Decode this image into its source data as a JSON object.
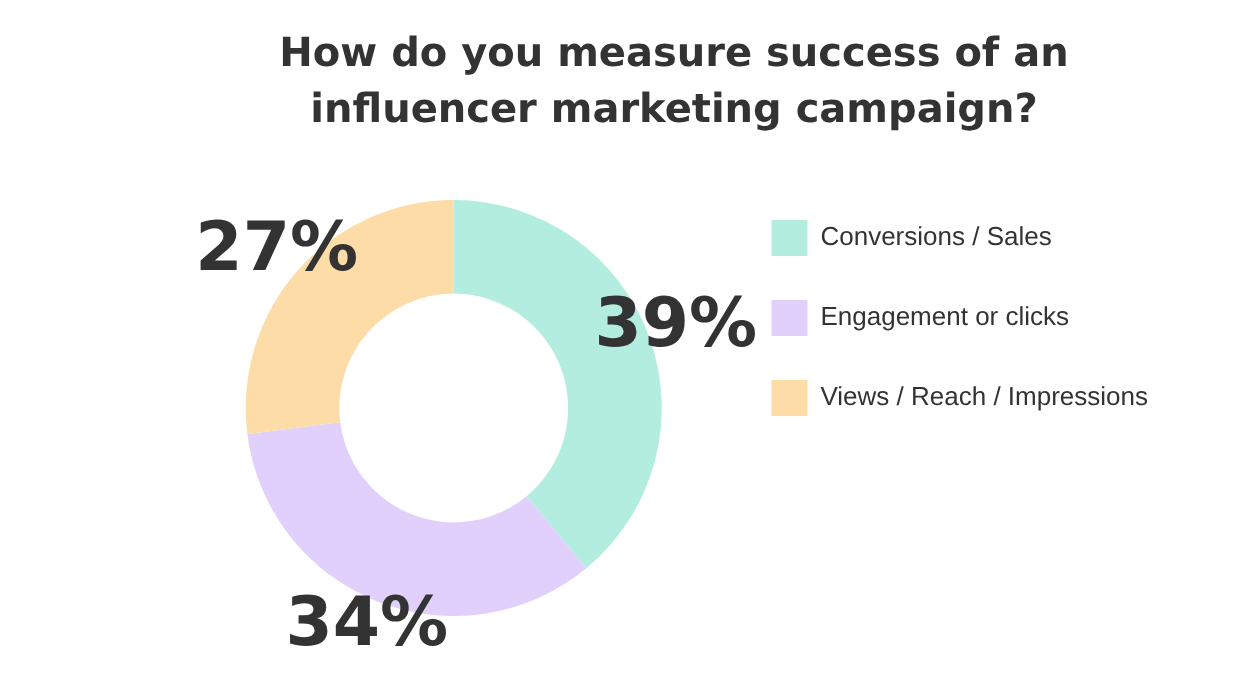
{
  "chart_data": {
    "type": "donut",
    "title": "How do you measure success of an influencer marketing campaign?",
    "categories": [
      "Conversions / Sales",
      "Engagement or clicks",
      "Views / Reach / Impressions"
    ],
    "values": [
      39,
      34,
      27
    ],
    "colors": [
      "#b3ede0",
      "#e0d0fb",
      "#fddca8"
    ],
    "value_labels": [
      "39%",
      "34%",
      "27%"
    ],
    "legend": "right"
  }
}
